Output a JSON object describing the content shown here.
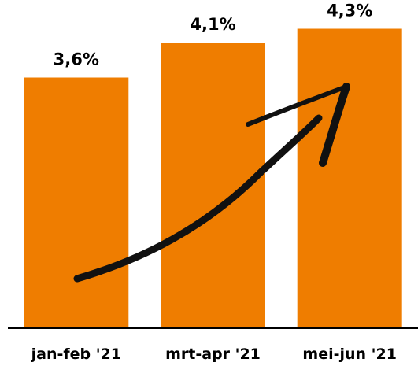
{
  "chart_data": {
    "type": "bar",
    "categories": [
      "jan-feb '21",
      "mrt-apr '21",
      "mei-jun '21"
    ],
    "values": [
      3.6,
      4.1,
      4.3
    ],
    "value_labels": [
      "3,6%",
      "4,1%",
      "4,3%"
    ],
    "title": "",
    "xlabel": "",
    "ylabel": "",
    "ylim": [
      0,
      4.6
    ],
    "grid": false,
    "legend": "none",
    "bar_color": "#ef7d00",
    "annotations": [
      {
        "type": "trend-arrow",
        "direction": "up"
      }
    ]
  }
}
